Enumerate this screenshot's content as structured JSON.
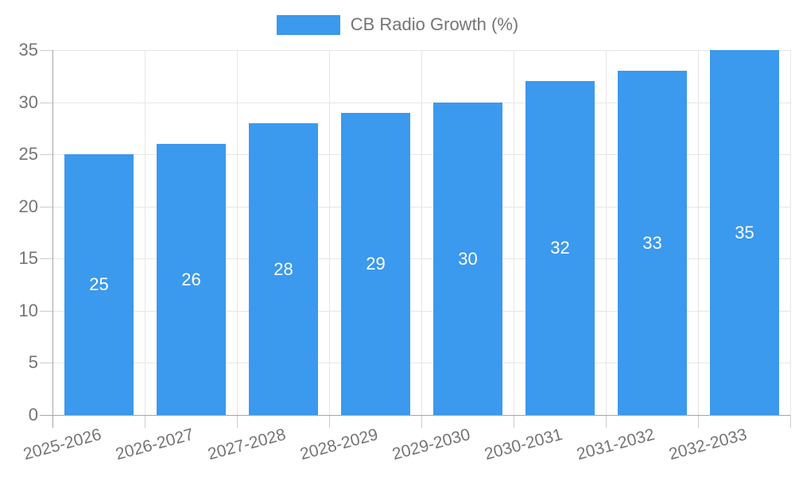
{
  "chart_data": {
    "type": "bar",
    "title": "CB Radio Growth (%)",
    "legend_label": "CB Radio Growth (%)",
    "legend_position": "top",
    "categories": [
      "2025-2026",
      "2026-2027",
      "2027-2028",
      "2028-2029",
      "2029-2030",
      "2030-2031",
      "2031-2032",
      "2032-2033"
    ],
    "series": [
      {
        "name": "CB Radio Growth (%)",
        "values": [
          25,
          26,
          28,
          29,
          30,
          32,
          33,
          35
        ]
      }
    ],
    "value_labels": [
      "25",
      "26",
      "28",
      "29",
      "30",
      "32",
      "33",
      "35"
    ],
    "xlabel": "",
    "ylabel": "",
    "ylim": [
      0,
      35
    ],
    "yticks": [
      0,
      5,
      10,
      15,
      20,
      25,
      30,
      35
    ],
    "grid": true,
    "x_label_rotation_deg": -15,
    "colors": {
      "bar": "#3b99ee",
      "bar_value_text": "#ffffff",
      "axis_text": "#757575",
      "grid_line": "#e6e6e6",
      "axis_line": "#a6a6a6",
      "tick_mark": "#cccccc",
      "background": "#ffffff"
    }
  }
}
